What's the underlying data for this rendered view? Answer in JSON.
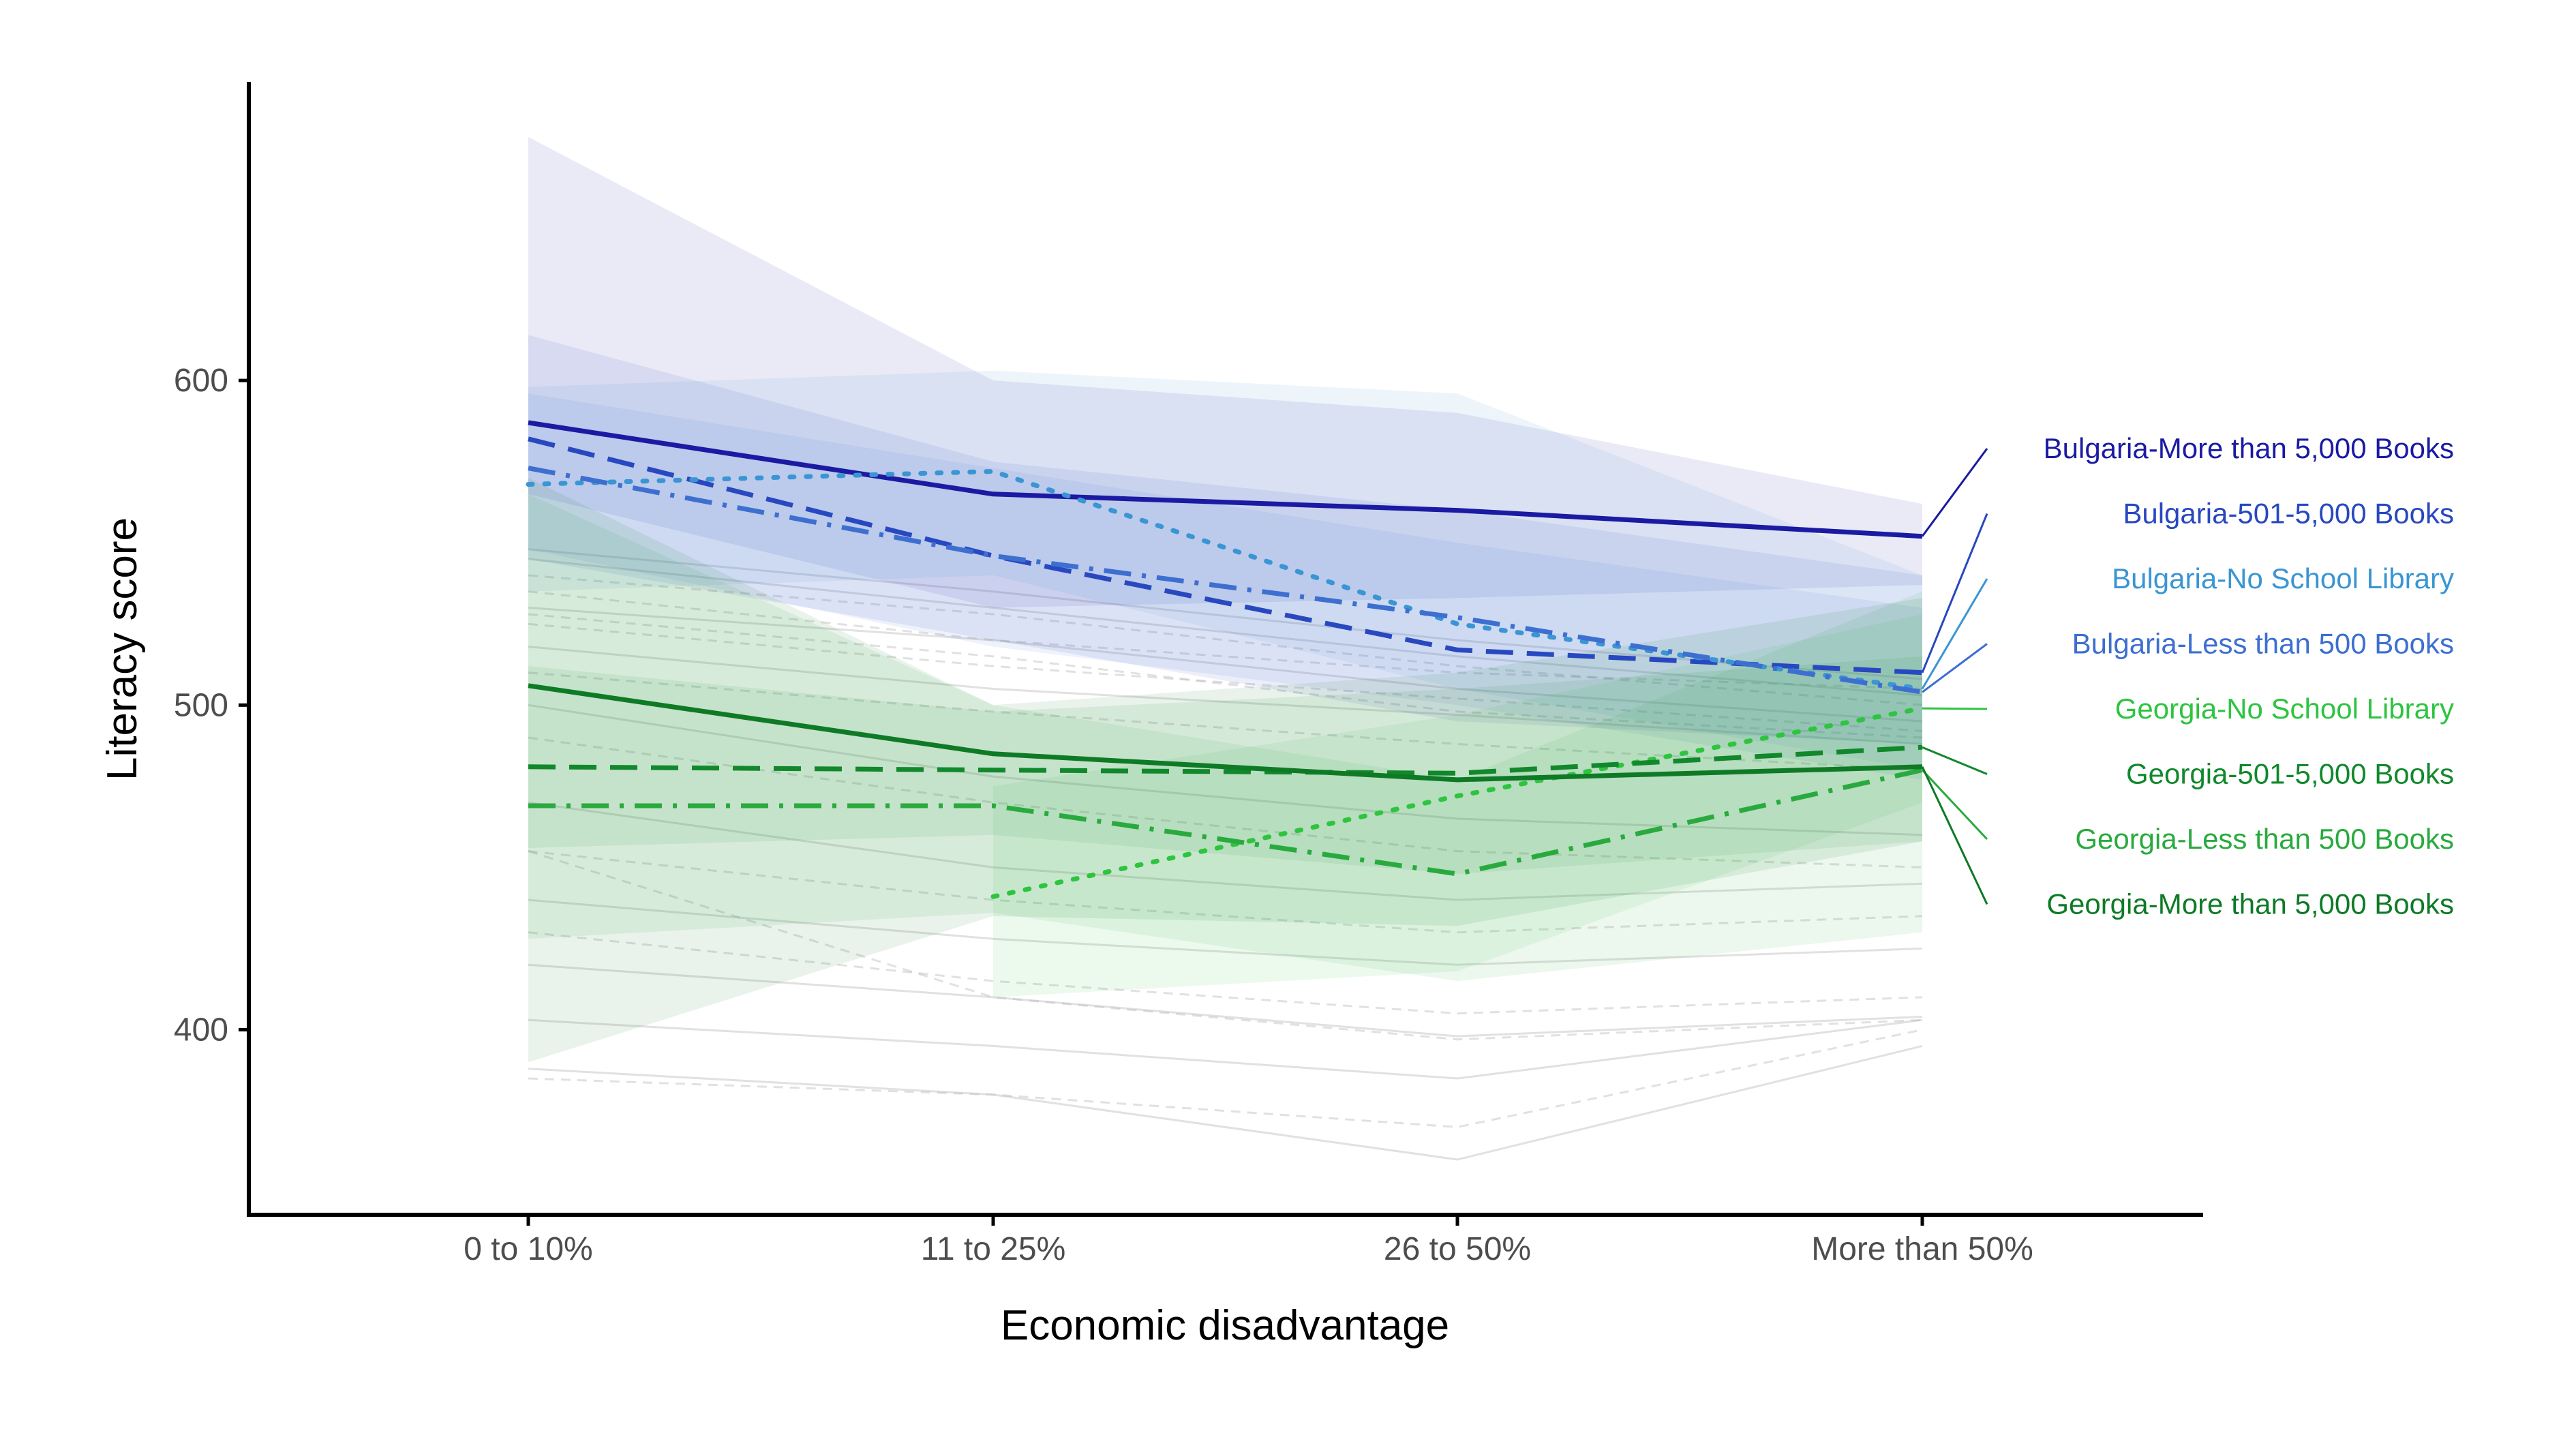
{
  "chart_data": {
    "type": "line",
    "xlabel": "Economic disadvantage",
    "ylabel": "Literacy score",
    "categories": [
      "0 to 10%",
      "11 to 25%",
      "26 to 50%",
      "More than 50%"
    ],
    "ylim": [
      343,
      692
    ],
    "yticks": [
      400,
      500,
      600
    ],
    "grid": false,
    "legend": "right",
    "colors": {
      "Bulgaria-More than 5,000 Books": "#1a1aa3",
      "Bulgaria-501-5,000 Books": "#2848c0",
      "Bulgaria-No School Library": "#3a95d4",
      "Bulgaria-Less than 500 Books": "#3d6fd0",
      "Georgia-No School Library": "#2ec440",
      "Georgia-501-5,000 Books": "#11882c",
      "Georgia-Less than 500 Books": "#29aa3e",
      "Georgia-More than 5,000 Books": "#0e7a26"
    },
    "series": [
      {
        "name": "Bulgaria-More than 5,000 Books",
        "dash": "solid",
        "values": [
          587,
          565,
          560,
          552
        ],
        "ci_low": [
          565,
          530,
          533,
          537
        ],
        "ci_high": [
          675,
          600,
          590,
          562
        ]
      },
      {
        "name": "Bulgaria-501-5,000 Books",
        "dash": "dash",
        "values": [
          582,
          546,
          517,
          510
        ],
        "ci_low": [
          545,
          520,
          495,
          488
        ],
        "ci_high": [
          614,
          575,
          560,
          540
        ]
      },
      {
        "name": "Bulgaria-No School Library",
        "dash": "dot",
        "values": [
          568,
          572,
          525,
          505
        ],
        "ci_low": [
          535,
          540,
          505,
          480
        ],
        "ci_high": [
          598,
          603,
          596,
          540
        ]
      },
      {
        "name": "Bulgaria-Less than 500 Books",
        "dash": "dashdot",
        "values": [
          573,
          546,
          527,
          504
        ],
        "ci_low": [
          548,
          518,
          500,
          477
        ],
        "ci_high": [
          596,
          573,
          550,
          530
        ]
      },
      {
        "name": "Georgia-No School Library",
        "dash": "dot",
        "values": [
          null,
          441,
          472,
          499
        ],
        "ci_low": [
          null,
          410,
          418,
          470
        ],
        "ci_high": [
          null,
          475,
          497,
          528
        ]
      },
      {
        "name": "Georgia-501-5,000 Books",
        "dash": "dash",
        "values": [
          481,
          480,
          479,
          487
        ],
        "ci_low": [
          456,
          460,
          448,
          458
        ],
        "ci_high": [
          512,
          498,
          505,
          515
        ]
      },
      {
        "name": "Georgia-Less than 500 Books",
        "dash": "dashdot",
        "values": [
          469,
          469,
          448,
          480
        ],
        "ci_low": [
          428,
          436,
          415,
          430
        ],
        "ci_high": [
          565,
          500,
          477,
          535
        ]
      },
      {
        "name": "Georgia-More than 5,000 Books",
        "dash": "solid",
        "values": [
          506,
          485,
          477,
          481
        ],
        "ci_low": [
          390,
          435,
          432,
          458
        ],
        "ci_high": [
          570,
          500,
          510,
          533
        ]
      }
    ],
    "background_series": [
      [
        548,
        535,
        520,
        508
      ],
      [
        540,
        528,
        512,
        500
      ],
      [
        530,
        520,
        505,
        495
      ],
      [
        525,
        512,
        502,
        492
      ],
      [
        518,
        505,
        497,
        488
      ],
      [
        510,
        498,
        488,
        480
      ],
      [
        500,
        478,
        465,
        460
      ],
      [
        490,
        470,
        455,
        450
      ],
      [
        470,
        450,
        440,
        445
      ],
      [
        455,
        440,
        430,
        435
      ],
      [
        440,
        428,
        420,
        425
      ],
      [
        430,
        415,
        405,
        410
      ],
      [
        420,
        410,
        398,
        404
      ],
      [
        455,
        410,
        397,
        403
      ],
      [
        403,
        395,
        385,
        403
      ],
      [
        385,
        380,
        370,
        400
      ],
      [
        388,
        380,
        360,
        395
      ],
      [
        535,
        520,
        510,
        505
      ],
      [
        545,
        530,
        515,
        503
      ],
      [
        528,
        515,
        498,
        490
      ]
    ]
  }
}
